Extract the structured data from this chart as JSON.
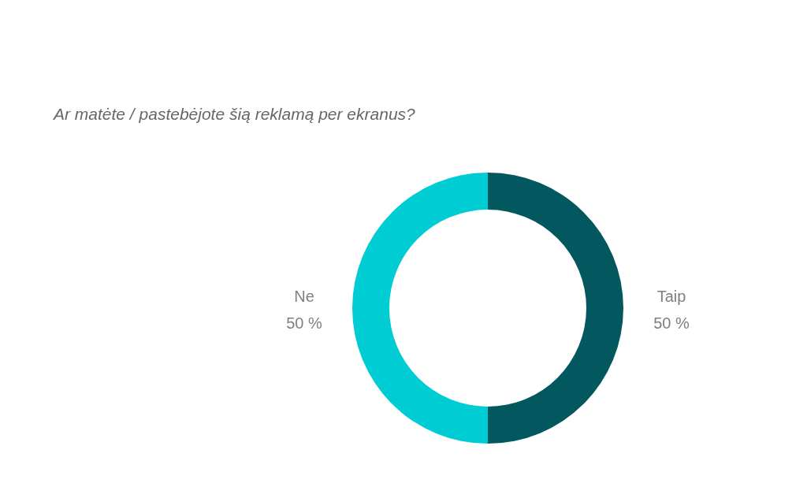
{
  "chart_data": {
    "type": "donut",
    "title": "Ar matėte / pastebėjote šią reklamą per ekranus?",
    "categories": [
      "Taip",
      "Ne"
    ],
    "values": [
      50,
      50
    ],
    "colors": [
      "#02585e",
      "#00ccd3"
    ],
    "value_labels": [
      "50 %",
      "50 %"
    ]
  }
}
